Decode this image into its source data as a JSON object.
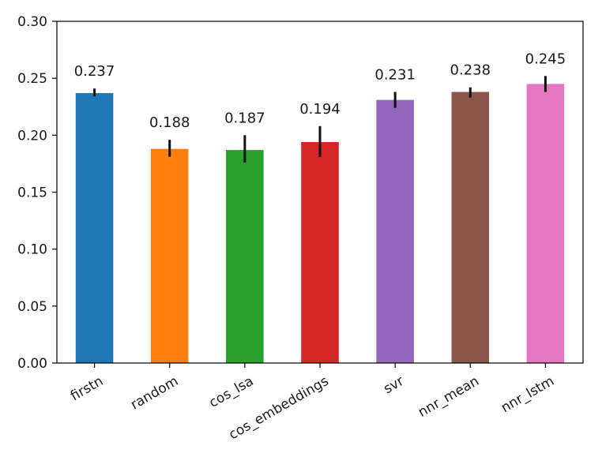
{
  "chart_data": {
    "type": "bar",
    "title": "",
    "xlabel": "",
    "ylabel": "",
    "ylim": [
      0,
      0.3
    ],
    "yticks": [
      "0.00",
      "0.05",
      "0.10",
      "0.15",
      "0.20",
      "0.25",
      "0.30"
    ],
    "grid": false,
    "legend": null,
    "categories": [
      "firstn",
      "random",
      "cos_lsa",
      "cos_embeddings",
      "svr",
      "nnr_mean",
      "nnr_lstm"
    ],
    "values": [
      0.237,
      0.188,
      0.187,
      0.194,
      0.231,
      0.238,
      0.245
    ],
    "value_labels": [
      "0.237",
      "0.188",
      "0.187",
      "0.194",
      "0.231",
      "0.238",
      "0.245"
    ],
    "error_low": [
      0.234,
      0.181,
      0.176,
      0.181,
      0.224,
      0.233,
      0.238
    ],
    "error_high": [
      0.241,
      0.196,
      0.2,
      0.208,
      0.238,
      0.242,
      0.252
    ],
    "colors": [
      "#1f77b4",
      "#ff7f0e",
      "#2ca02c",
      "#d62728",
      "#9467bd",
      "#8c564b",
      "#e377c2"
    ],
    "xtick_rotation": 30
  }
}
